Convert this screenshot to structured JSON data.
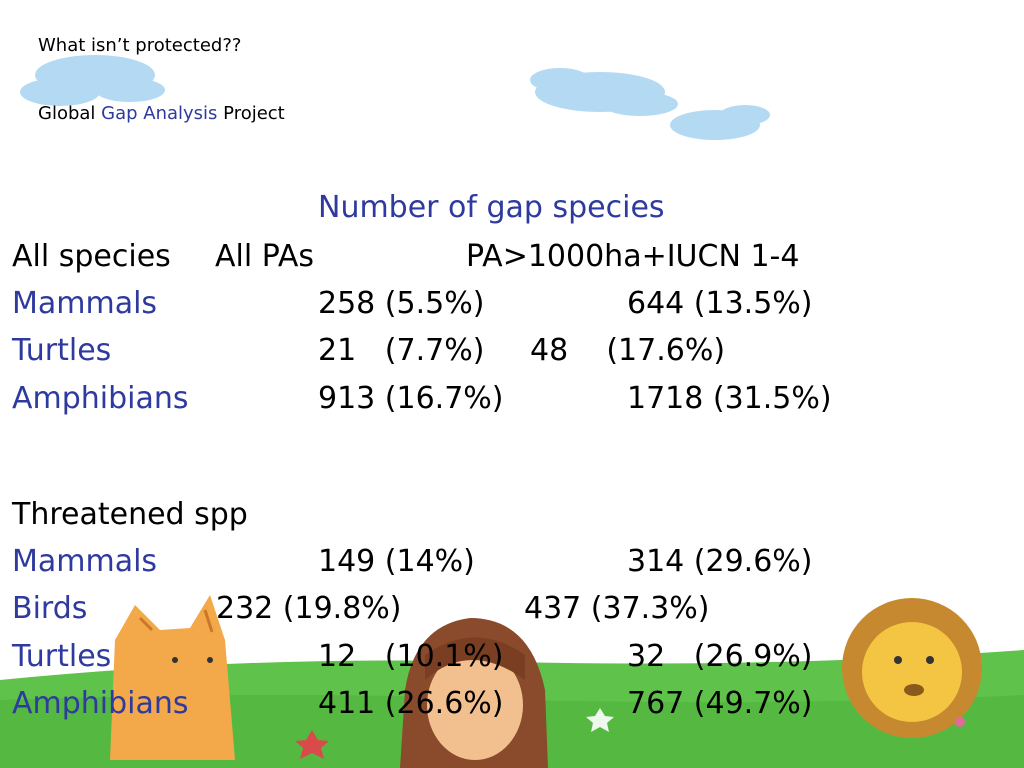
{
  "slide": {
    "line1": "What isn’t protected??",
    "line2_pre": "Global ",
    "line2_hl": "Gap Analysis",
    "line2_post": " Project",
    "table_title": "Number of gap species",
    "header": {
      "col1": "All species",
      "col2": "All PAs",
      "col3": "PA>1000ha+IUCN 1-4"
    },
    "all_species_rows": [
      {
        "label": "Mammals",
        "v1": "258 (5.5%)",
        "v2": "644 (13.5%)"
      },
      {
        "label": "Turtles",
        "v1": "21   (7.7%)",
        "v2": "48    (17.6%)"
      },
      {
        "label": "Amphibians",
        "v1": "913 (16.7%)",
        "v2": "1718 (31.5%)"
      }
    ],
    "threatened_heading": "Threatened spp",
    "threatened_rows": [
      {
        "label": "Mammals",
        "v1": "149 (14%)",
        "v2": "314 (29.6%)"
      },
      {
        "label": "Birds",
        "v1": "232 (19.8%)",
        "v2": "437 (37.3%)"
      },
      {
        "label": "Turtles",
        "v1": "12   (10.1%)",
        "v2": "32   (26.9%)"
      },
      {
        "label": "Amphibians",
        "v1": "411 (26.6%)",
        "v2": "767 (49.7%)"
      }
    ]
  },
  "colors": {
    "label_blue": "#2e3a9e",
    "grass": "#5fc24a",
    "sky_cloud": "#9fd0ef"
  }
}
